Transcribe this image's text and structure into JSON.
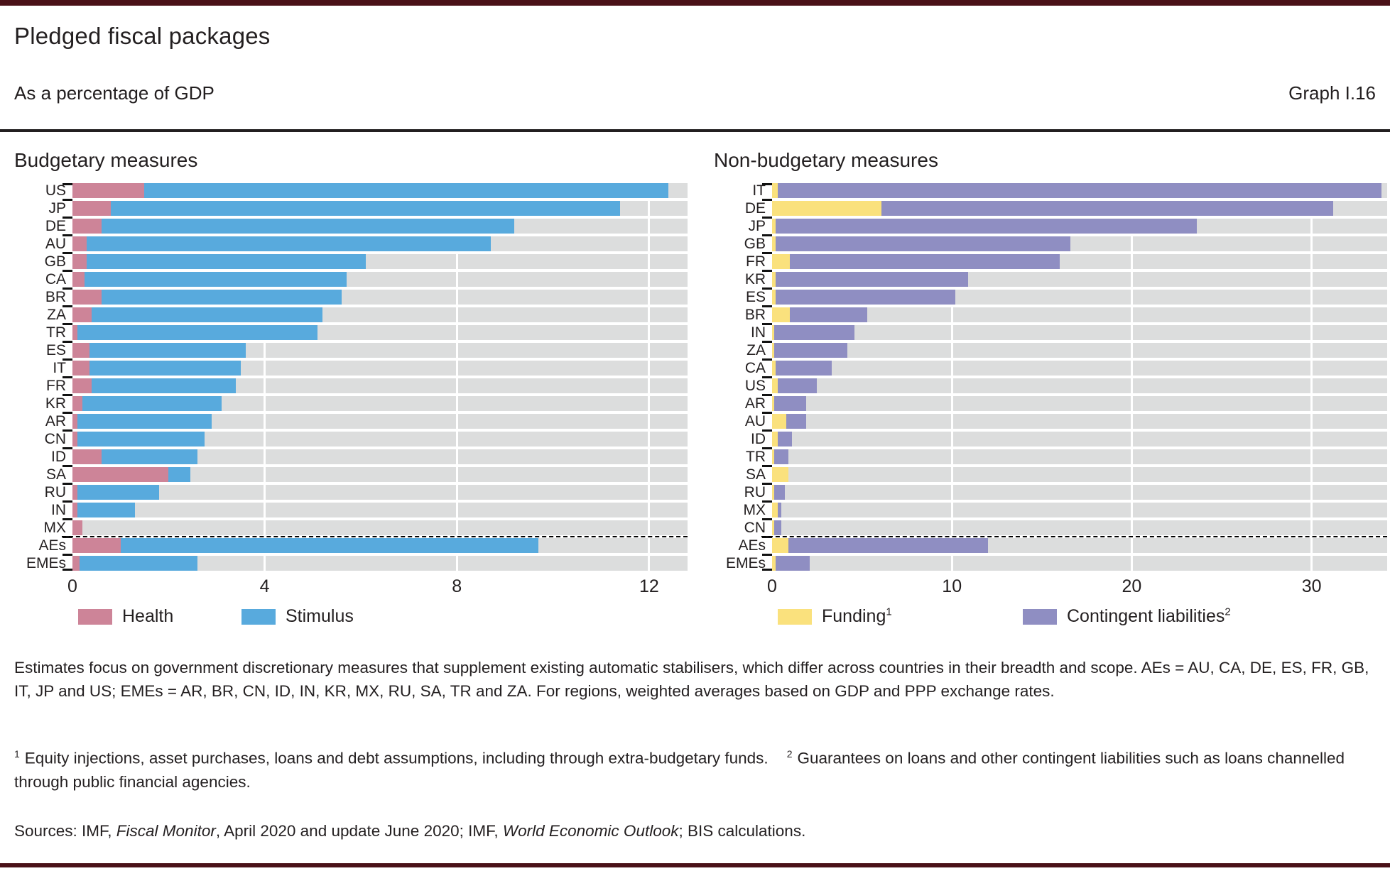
{
  "header": {
    "title": "Pledged fiscal packages",
    "subtitle": "As a percentage of GDP",
    "graph_label": "Graph I.16"
  },
  "colors": {
    "health": "#cd8498",
    "stimulus": "#58aadd",
    "funding": "#fae17d",
    "contingent_liabilities": "#8f8ec2",
    "track_background": "#dcdddd",
    "rule_dark_red": "#4a1118",
    "text": "#231f20"
  },
  "chart_data": [
    {
      "type": "bar",
      "orientation": "horizontal-stacked",
      "title": "Budgetary measures",
      "unit": "% of GDP",
      "categories": [
        "US",
        "JP",
        "DE",
        "AU",
        "GB",
        "CA",
        "BR",
        "ZA",
        "TR",
        "ES",
        "IT",
        "FR",
        "KR",
        "AR",
        "CN",
        "ID",
        "SA",
        "RU",
        "IN",
        "MX",
        "AEs",
        "EMEs"
      ],
      "series": [
        {
          "name": "Health",
          "sup": "",
          "color": "#cd8498",
          "values": [
            1.5,
            0.8,
            0.6,
            0.3,
            0.3,
            0.25,
            0.6,
            0.4,
            0.1,
            0.35,
            0.35,
            0.4,
            0.2,
            0.1,
            0.1,
            0.6,
            2.0,
            0.1,
            0.1,
            0.2,
            1.0,
            0.15
          ]
        },
        {
          "name": "Stimulus",
          "sup": "",
          "color": "#58aadd",
          "values": [
            10.9,
            10.6,
            8.6,
            8.4,
            5.8,
            5.45,
            5.0,
            4.8,
            5.0,
            3.25,
            3.15,
            3.0,
            2.9,
            2.8,
            2.65,
            2.0,
            0.45,
            1.7,
            1.2,
            0.0,
            8.7,
            2.45
          ]
        }
      ],
      "xlim": [
        0,
        12.8
      ],
      "xticks": [
        0,
        4,
        8,
        12
      ],
      "separator_after_index": 19,
      "grid": "vertical-white-on-gray",
      "legend_position": "bottom"
    },
    {
      "type": "bar",
      "orientation": "horizontal-stacked",
      "title": "Non-budgetary measures",
      "unit": "% of GDP",
      "categories": [
        "IT",
        "DE",
        "JP",
        "GB",
        "FR",
        "KR",
        "ES",
        "BR",
        "IN",
        "ZA",
        "CA",
        "US",
        "AR",
        "AU",
        "ID",
        "TR",
        "SA",
        "RU",
        "MX",
        "CN",
        "AEs",
        "EMEs"
      ],
      "series": [
        {
          "name": "Funding",
          "sup": "1",
          "color": "#fae17d",
          "values": [
            0.3,
            6.1,
            0.2,
            0.2,
            1.0,
            0.2,
            0.2,
            1.0,
            0.1,
            0.1,
            0.2,
            0.3,
            0.1,
            0.8,
            0.3,
            0.1,
            0.9,
            0.1,
            0.3,
            0.1,
            0.9,
            0.2
          ]
        },
        {
          "name": "Contingent liabilities",
          "sup": "2",
          "color": "#8f8ec2",
          "values": [
            33.6,
            25.1,
            23.4,
            16.4,
            15.0,
            10.7,
            10.0,
            4.3,
            4.5,
            4.1,
            3.1,
            2.2,
            1.8,
            1.1,
            0.8,
            0.8,
            0.0,
            0.6,
            0.2,
            0.4,
            11.1,
            1.9
          ]
        }
      ],
      "xlim": [
        0,
        34.2
      ],
      "xticks": [
        0,
        10,
        20,
        30
      ],
      "separator_after_index": 19,
      "grid": "vertical-white-on-gray",
      "legend_position": "bottom"
    }
  ],
  "notes": {
    "paragraph": "Estimates focus on government discretionary measures that supplement existing automatic stabilisers, which differ across countries in their breadth and scope. AEs = AU, CA, DE, ES, FR, GB, IT, JP and US; EMEs = AR, BR, CN, ID, IN, KR, MX, RU, SA, TR and ZA. For regions, weighted averages based on GDP and PPP exchange rates."
  },
  "footnotes": [
    {
      "marker": "1",
      "text": "Equity injections, asset purchases, loans and debt assumptions, including through extra-budgetary funds."
    },
    {
      "marker": "2",
      "text": "Guarantees on loans and other contingent liabilities such as loans channelled through public financial agencies."
    }
  ],
  "sources": {
    "segments": [
      {
        "text": "Sources: IMF, ",
        "italic": false
      },
      {
        "text": "Fiscal Monitor",
        "italic": true
      },
      {
        "text": ", April 2020 and update June 2020; IMF, ",
        "italic": false
      },
      {
        "text": "World Economic Outlook",
        "italic": true
      },
      {
        "text": "; BIS calculations.",
        "italic": false
      }
    ]
  }
}
